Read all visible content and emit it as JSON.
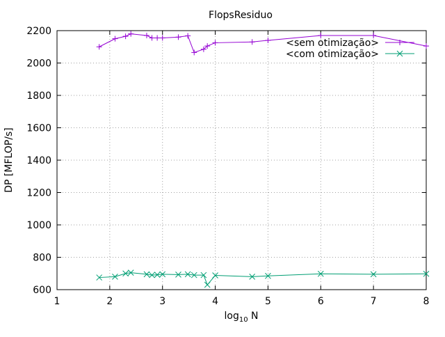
{
  "chart_data": {
    "type": "line",
    "title": "FlopsResiduo",
    "xlabel": {
      "base": "log",
      "sub": "10",
      "rest": " N"
    },
    "ylabel": "DP [MFLOP/s]",
    "xlim": [
      1,
      8
    ],
    "ylim": [
      600,
      2200
    ],
    "xticks": [
      1,
      2,
      3,
      4,
      5,
      6,
      7,
      8
    ],
    "yticks": [
      600,
      800,
      1000,
      1200,
      1400,
      1600,
      1800,
      2000,
      2200
    ],
    "grid": true,
    "legend_position": "top-right",
    "series": [
      {
        "name": "<sem otimização>",
        "color": "#9400d3",
        "marker": "plus",
        "x": [
          1.8,
          2.1,
          2.3,
          2.4,
          2.7,
          2.8,
          2.9,
          3.0,
          3.3,
          3.48,
          3.6,
          3.78,
          3.85,
          4.0,
          4.7,
          5.0,
          6.0,
          7.0,
          8.0
        ],
        "y": [
          2100,
          2150,
          2165,
          2180,
          2170,
          2155,
          2155,
          2155,
          2160,
          2168,
          2065,
          2085,
          2105,
          2125,
          2130,
          2140,
          2170,
          2170,
          2105
        ]
      },
      {
        "name": "<com otimização>",
        "color": "#009e73",
        "marker": "cross",
        "x": [
          1.8,
          2.1,
          2.3,
          2.4,
          2.7,
          2.8,
          2.9,
          3.0,
          3.3,
          3.48,
          3.6,
          3.78,
          3.85,
          4.0,
          4.7,
          5.0,
          6.0,
          7.0,
          8.0
        ],
        "y": [
          675,
          680,
          700,
          705,
          695,
          690,
          692,
          695,
          693,
          695,
          690,
          690,
          630,
          688,
          680,
          685,
          698,
          695,
          698
        ]
      }
    ]
  }
}
